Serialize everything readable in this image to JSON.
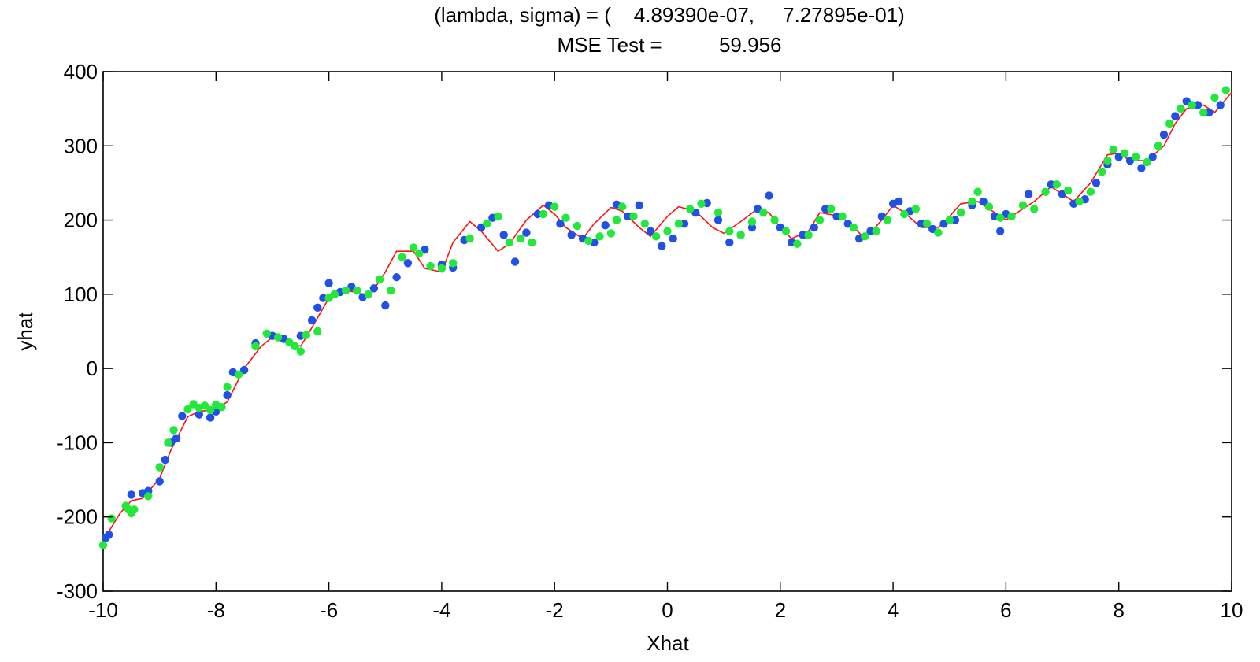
{
  "chart_data": {
    "type": "scatter",
    "title_lines": [
      "(lambda, sigma) = (    4.89390e-07,     7.27895e-01)",
      "MSE Test =          59.956"
    ],
    "xlabel": "Xhat",
    "ylabel": "yhat",
    "xlim": [
      -10,
      10
    ],
    "ylim": [
      -300,
      400
    ],
    "x_ticks": [
      "-10",
      "-8",
      "-6",
      "-4",
      "-2",
      "0",
      "2",
      "4",
      "6",
      "8",
      "10"
    ],
    "y_ticks": [
      "400",
      "300",
      "200",
      "100",
      "0",
      "-100",
      "-200",
      "-300"
    ],
    "grid": false,
    "legend": "none",
    "colors": {
      "train": "#2050e8",
      "test": "#22e83a",
      "fit": "#ff1010"
    },
    "series": [
      {
        "kind": "points",
        "color": "#2050e8",
        "x": [
          -9.95,
          -9.9,
          -9.5,
          -9.3,
          -9.2,
          -9.0,
          -8.9,
          -8.8,
          -8.7,
          -8.6,
          -8.3,
          -8.1,
          -8.0,
          -7.8,
          -7.7,
          -7.5,
          -7.3,
          -7.0,
          -6.8,
          -6.5,
          -6.3,
          -6.2,
          -6.1,
          -6.0,
          -5.8,
          -5.6,
          -5.4,
          -5.2,
          -5.0,
          -4.8,
          -4.6,
          -4.3,
          -4.0,
          -3.8,
          -3.6,
          -3.3,
          -3.1,
          -2.9,
          -2.7,
          -2.5,
          -2.3,
          -2.1,
          -1.9,
          -1.7,
          -1.5,
          -1.3,
          -1.1,
          -0.9,
          -0.7,
          -0.5,
          -0.3,
          -0.1,
          0.1,
          0.3,
          0.5,
          0.7,
          0.9,
          1.1,
          1.3,
          1.5,
          1.6,
          1.8,
          2.0,
          2.2,
          2.4,
          2.6,
          2.8,
          3.0,
          3.2,
          3.4,
          3.6,
          3.8,
          4.0,
          4.1,
          4.3,
          4.5,
          4.7,
          4.9,
          5.1,
          5.2,
          5.4,
          5.6,
          5.8,
          5.9,
          6.0,
          6.4,
          6.8,
          7.0,
          7.2,
          7.4,
          7.6,
          7.8,
          8.0,
          8.2,
          8.4,
          8.6,
          8.8,
          9.0,
          9.2,
          9.4,
          9.6,
          9.8
        ],
        "y": [
          -228,
          -224,
          -170,
          -168,
          -165,
          -152,
          -123,
          -100,
          -94,
          -64,
          -62,
          -66,
          -58,
          -36,
          -5,
          -2,
          34,
          44,
          40,
          44,
          65,
          82,
          95,
          115,
          103,
          110,
          96,
          108,
          85,
          123,
          142,
          160,
          140,
          136,
          173,
          190,
          203,
          180,
          144,
          183,
          208,
          220,
          195,
          180,
          175,
          170,
          193,
          221,
          205,
          220,
          185,
          165,
          175,
          195,
          210,
          223,
          200,
          170,
          180,
          190,
          215,
          233,
          190,
          170,
          180,
          190,
          215,
          205,
          195,
          175,
          185,
          205,
          222,
          225,
          212,
          195,
          188,
          195,
          200,
          210,
          220,
          225,
          205,
          185,
          208,
          235,
          248,
          235,
          222,
          228,
          250,
          275,
          285,
          280,
          270,
          285,
          315,
          340,
          360,
          355,
          345,
          355
        ]
      },
      {
        "kind": "points",
        "color": "#22e83a",
        "x": [
          -10.0,
          -9.85,
          -9.6,
          -9.55,
          -9.5,
          -9.45,
          -9.2,
          -9.0,
          -8.85,
          -8.75,
          -8.5,
          -8.4,
          -8.3,
          -8.2,
          -8.1,
          -8.0,
          -7.9,
          -7.8,
          -7.6,
          -7.3,
          -7.1,
          -6.9,
          -6.7,
          -6.6,
          -6.5,
          -6.4,
          -6.2,
          -6.0,
          -5.9,
          -5.7,
          -5.5,
          -5.3,
          -5.1,
          -4.9,
          -4.7,
          -4.5,
          -4.4,
          -4.2,
          -4.0,
          -3.8,
          -3.5,
          -3.2,
          -3.0,
          -2.8,
          -2.6,
          -2.4,
          -2.2,
          -2.0,
          -1.8,
          -1.6,
          -1.4,
          -1.2,
          -1.0,
          -0.9,
          -0.8,
          -0.6,
          -0.4,
          -0.2,
          0.0,
          0.2,
          0.4,
          0.6,
          0.9,
          1.1,
          1.3,
          1.5,
          1.7,
          1.9,
          2.1,
          2.3,
          2.5,
          2.7,
          2.9,
          3.1,
          3.3,
          3.5,
          3.7,
          3.9,
          4.2,
          4.4,
          4.6,
          4.8,
          5.0,
          5.2,
          5.4,
          5.5,
          5.7,
          5.9,
          6.1,
          6.3,
          6.5,
          6.7,
          6.9,
          7.1,
          7.3,
          7.5,
          7.7,
          7.8,
          7.9,
          8.1,
          8.3,
          8.5,
          8.7,
          8.9,
          9.1,
          9.3,
          9.5,
          9.7,
          9.9
        ],
        "y": [
          -238,
          -202,
          -185,
          -190,
          -195,
          -190,
          -172,
          -133,
          -100,
          -83,
          -55,
          -48,
          -53,
          -50,
          -56,
          -49,
          -52,
          -25,
          -8,
          30,
          47,
          42,
          35,
          30,
          23,
          45,
          50,
          95,
          100,
          105,
          105,
          100,
          120,
          105,
          150,
          163,
          155,
          138,
          135,
          142,
          175,
          195,
          205,
          170,
          175,
          170,
          208,
          218,
          203,
          192,
          172,
          178,
          182,
          200,
          218,
          205,
          195,
          178,
          185,
          195,
          215,
          222,
          210,
          185,
          180,
          198,
          210,
          200,
          185,
          168,
          180,
          200,
          215,
          205,
          190,
          178,
          185,
          200,
          208,
          215,
          195,
          183,
          200,
          210,
          225,
          238,
          218,
          203,
          205,
          220,
          215,
          238,
          248,
          240,
          225,
          238,
          265,
          280,
          295,
          290,
          285,
          278,
          300,
          330,
          350,
          355,
          345,
          365,
          375
        ]
      },
      {
        "kind": "line",
        "color": "#ff1010",
        "x": [
          -10,
          -9.7,
          -9.5,
          -9.3,
          -9.0,
          -8.8,
          -8.5,
          -8.3,
          -8.0,
          -7.8,
          -7.5,
          -7.2,
          -7.0,
          -6.8,
          -6.5,
          -6.3,
          -6.0,
          -5.8,
          -5.5,
          -5.3,
          -5.0,
          -4.8,
          -4.5,
          -4.3,
          -4.0,
          -3.8,
          -3.5,
          -3.3,
          -3.0,
          -2.8,
          -2.5,
          -2.2,
          -2.0,
          -1.8,
          -1.5,
          -1.3,
          -1.0,
          -0.8,
          -0.5,
          -0.3,
          0.0,
          0.2,
          0.5,
          0.8,
          1.0,
          1.3,
          1.6,
          1.8,
          2.0,
          2.2,
          2.5,
          2.7,
          3.0,
          3.2,
          3.5,
          3.8,
          4.0,
          4.2,
          4.5,
          4.8,
          5.0,
          5.2,
          5.5,
          5.8,
          6.0,
          6.2,
          6.5,
          6.8,
          7.0,
          7.2,
          7.5,
          7.8,
          8.0,
          8.2,
          8.5,
          8.8,
          9.0,
          9.2,
          9.5,
          9.7,
          10
        ],
        "y": [
          -232,
          -195,
          -178,
          -175,
          -148,
          -110,
          -65,
          -58,
          -55,
          -45,
          0,
          30,
          42,
          40,
          30,
          55,
          95,
          105,
          103,
          95,
          130,
          158,
          158,
          135,
          130,
          170,
          198,
          185,
          158,
          168,
          200,
          220,
          208,
          190,
          175,
          195,
          217,
          212,
          190,
          178,
          205,
          218,
          212,
          190,
          182,
          198,
          215,
          210,
          190,
          175,
          185,
          210,
          206,
          198,
          175,
          200,
          220,
          210,
          190,
          190,
          205,
          222,
          225,
          210,
          200,
          210,
          225,
          245,
          235,
          225,
          250,
          288,
          290,
          280,
          280,
          300,
          330,
          350,
          355,
          345,
          372
        ]
      }
    ]
  }
}
